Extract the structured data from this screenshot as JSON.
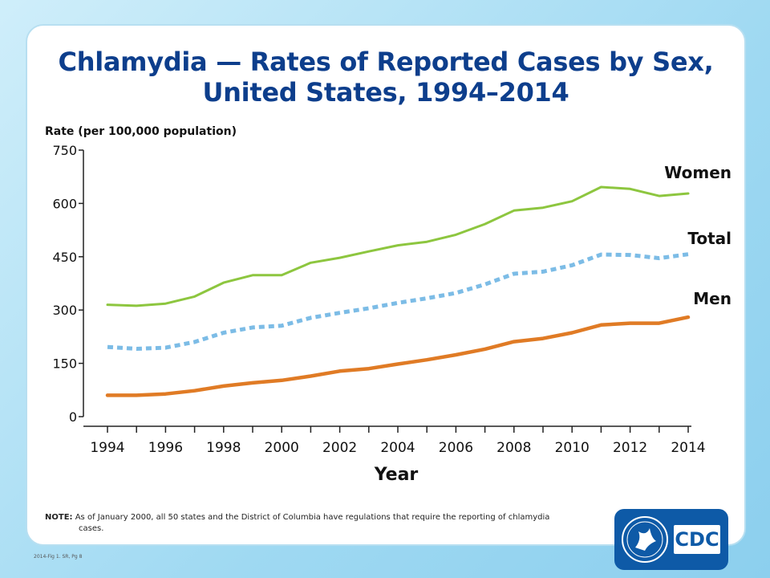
{
  "title_line1": "Chlamydia — Rates of Reported Cases by Sex,",
  "title_line2": "United States, 1994–2014",
  "note_label": "NOTE:",
  "note_text1": "As of January 2000, all 50 states and the District of Columbia have regulations that require the reporting of chlamydia",
  "note_text2": "cases.",
  "footer_ref": "2014-Fig 1. SR, Pg 8",
  "logo_text": "CDC",
  "colors": {
    "women": "#8dc63f",
    "total": "#7cbce6",
    "men": "#e07b25",
    "title": "#0d3e8c",
    "logo": "#0e5aa7"
  },
  "chart_data": {
    "type": "line",
    "ylabel": "Rate (per 100,000 population)",
    "xlabel": "Year",
    "ylim": [
      0,
      750
    ],
    "yticks": [
      0,
      150,
      300,
      450,
      600,
      750
    ],
    "xticks": [
      1994,
      1996,
      1998,
      2000,
      2002,
      2004,
      2006,
      2008,
      2010,
      2012,
      2014
    ],
    "x": [
      1994,
      1995,
      1996,
      1997,
      1998,
      1999,
      2000,
      2001,
      2002,
      2003,
      2004,
      2005,
      2006,
      2007,
      2008,
      2009,
      2010,
      2011,
      2012,
      2013,
      2014
    ],
    "grid": false,
    "series": [
      {
        "name": "Women",
        "color": "#8dc63f",
        "dash": false,
        "values": [
          315,
          312,
          318,
          338,
          377,
          398,
          398,
          433,
          447,
          465,
          482,
          492,
          512,
          542,
          580,
          588,
          606,
          646,
          641,
          621,
          628
        ]
      },
      {
        "name": "Total",
        "color": "#7cbce6",
        "dash": true,
        "values": [
          196,
          191,
          194,
          210,
          236,
          251,
          256,
          278,
          292,
          305,
          320,
          333,
          348,
          372,
          402,
          408,
          426,
          456,
          455,
          446,
          457
        ]
      },
      {
        "name": "Men",
        "color": "#e07b25",
        "dash": false,
        "values": [
          60,
          60,
          64,
          73,
          86,
          95,
          102,
          114,
          128,
          135,
          148,
          160,
          174,
          190,
          211,
          220,
          236,
          258,
          263,
          263,
          280
        ]
      }
    ]
  }
}
